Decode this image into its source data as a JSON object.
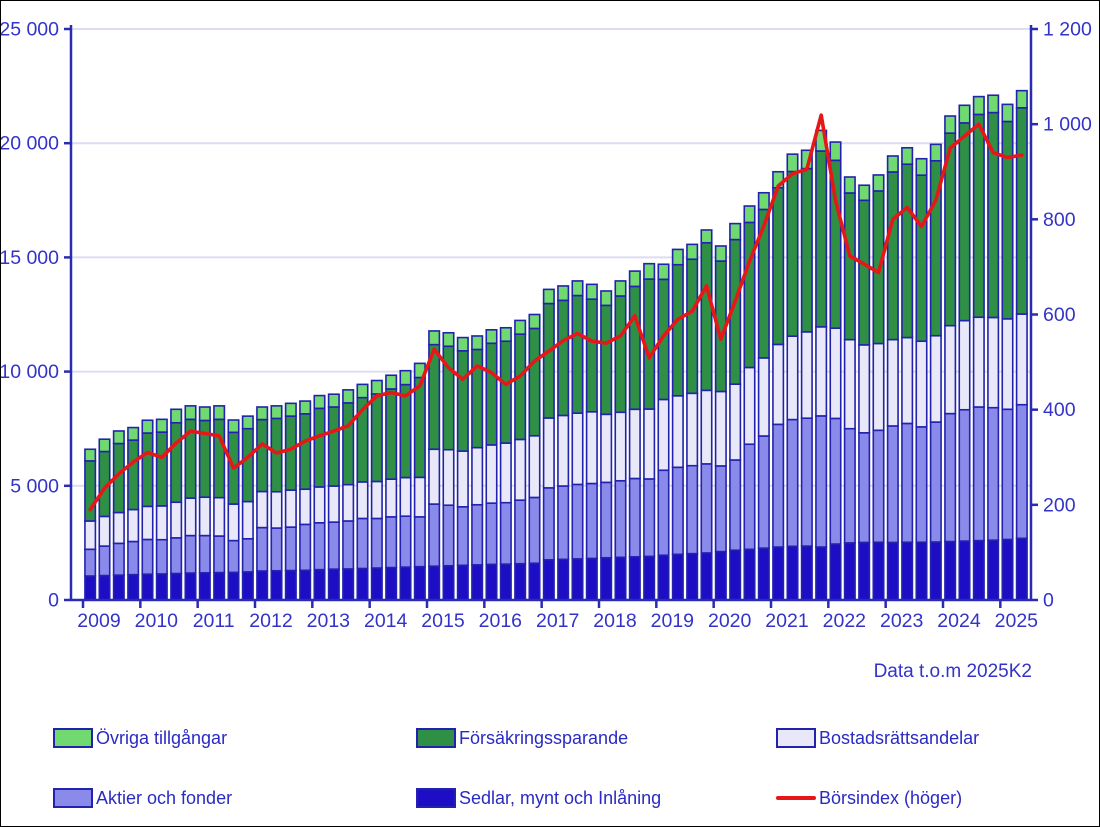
{
  "note": "Data t.o.m 2025K2",
  "colors": {
    "axis": "#2b2bb2",
    "grid": "#dcdcf4",
    "text": "#3333c9",
    "bar_outline": "#2222ad",
    "background": "#ffffff"
  },
  "legend": {
    "items": [
      {
        "label": "Övriga tillgångar",
        "color": "#70d970",
        "type": "box"
      },
      {
        "label": "Försäkringssparande",
        "color": "#2e8f45",
        "type": "box"
      },
      {
        "label": "Bostadsrättsandelar",
        "color": "#e8e8f8",
        "type": "box"
      },
      {
        "label": "Aktier och fonder",
        "color": "#8a8aea",
        "type": "box"
      },
      {
        "label": "Sedlar, mynt och Inlåning",
        "color": "#1d0ec5",
        "type": "box"
      },
      {
        "label": "Börsindex (höger)",
        "color": "#e61717",
        "type": "line"
      }
    ]
  },
  "chart_data": {
    "type": "bar",
    "subtype": "stacked-bar-with-line",
    "title": "",
    "xlabel": "",
    "ylabel": "",
    "grid": true,
    "legend_position": "bottom",
    "year_labels": [
      "2009",
      "2010",
      "2011",
      "2012",
      "2013",
      "2014",
      "2015",
      "2016",
      "2017",
      "2018",
      "2019",
      "2020",
      "2021",
      "2022",
      "2023",
      "2024",
      "2025"
    ],
    "quarters": [
      "2009K1",
      "2009K2",
      "2009K3",
      "2009K4",
      "2010K1",
      "2010K2",
      "2010K3",
      "2010K4",
      "2011K1",
      "2011K2",
      "2011K3",
      "2011K4",
      "2012K1",
      "2012K2",
      "2012K3",
      "2012K4",
      "2013K1",
      "2013K2",
      "2013K3",
      "2013K4",
      "2014K1",
      "2014K2",
      "2014K3",
      "2014K4",
      "2015K1",
      "2015K2",
      "2015K3",
      "2015K4",
      "2016K1",
      "2016K2",
      "2016K3",
      "2016K4",
      "2017K1",
      "2017K2",
      "2017K3",
      "2017K4",
      "2018K1",
      "2018K2",
      "2018K3",
      "2018K4",
      "2019K1",
      "2019K2",
      "2019K3",
      "2019K4",
      "2020K1",
      "2020K2",
      "2020K3",
      "2020K4",
      "2021K1",
      "2021K2",
      "2021K3",
      "2021K4",
      "2022K1",
      "2022K2",
      "2022K3",
      "2022K4",
      "2023K1",
      "2023K2",
      "2023K3",
      "2023K4",
      "2024K1",
      "2024K2",
      "2024K3",
      "2024K4",
      "2025K1",
      "2025K2"
    ],
    "left_axis": {
      "min": 0,
      "max": 25000,
      "tick_step": 5000,
      "tick_labels": [
        "0",
        "5 000",
        "10 000",
        "15 000",
        "20 000",
        "25 000"
      ]
    },
    "right_axis": {
      "min": 0,
      "max": 1200,
      "tick_step": 200,
      "tick_labels": [
        "0",
        "200",
        "400",
        "600",
        "800",
        "1 000",
        "1 200"
      ]
    },
    "series": [
      {
        "name": "Sedlar, mynt och Inlåning",
        "color": "#1d0ec5",
        "values": [
          1050,
          1070,
          1090,
          1110,
          1130,
          1140,
          1160,
          1180,
          1190,
          1200,
          1210,
          1230,
          1270,
          1280,
          1290,
          1300,
          1330,
          1350,
          1360,
          1380,
          1400,
          1420,
          1440,
          1460,
          1480,
          1500,
          1520,
          1540,
          1560,
          1570,
          1590,
          1610,
          1760,
          1780,
          1800,
          1820,
          1850,
          1870,
          1890,
          1910,
          1960,
          2000,
          2030,
          2060,
          2120,
          2180,
          2220,
          2270,
          2320,
          2350,
          2360,
          2320,
          2450,
          2500,
          2520,
          2530,
          2520,
          2530,
          2530,
          2540,
          2560,
          2580,
          2600,
          2620,
          2650,
          2700
        ]
      },
      {
        "name": "Aktier och fonder",
        "color": "#8a8aea",
        "values": [
          1170,
          1290,
          1390,
          1450,
          1520,
          1500,
          1560,
          1640,
          1630,
          1600,
          1390,
          1450,
          1900,
          1870,
          1900,
          2010,
          2050,
          2060,
          2100,
          2190,
          2170,
          2220,
          2230,
          2180,
          2720,
          2650,
          2560,
          2630,
          2680,
          2690,
          2780,
          2880,
          3150,
          3210,
          3260,
          3280,
          3300,
          3350,
          3430,
          3390,
          3720,
          3810,
          3850,
          3900,
          3750,
          3950,
          4600,
          4910,
          5370,
          5550,
          5600,
          5740,
          5500,
          5000,
          4800,
          4900,
          5100,
          5200,
          5050,
          5250,
          5600,
          5750,
          5850,
          5800,
          5700,
          5850
        ]
      },
      {
        "name": "Bostadsrättsandelar",
        "color": "#e8e8f8",
        "values": [
          1240,
          1300,
          1350,
          1400,
          1450,
          1480,
          1560,
          1640,
          1680,
          1680,
          1600,
          1630,
          1580,
          1590,
          1620,
          1540,
          1570,
          1580,
          1590,
          1600,
          1620,
          1650,
          1690,
          1730,
          2400,
          2430,
          2440,
          2500,
          2550,
          2610,
          2660,
          2700,
          3060,
          3090,
          3120,
          3140,
          2980,
          3000,
          3030,
          3060,
          3100,
          3130,
          3170,
          3220,
          3260,
          3320,
          3360,
          3420,
          3500,
          3650,
          3780,
          3900,
          3950,
          3900,
          3850,
          3800,
          3780,
          3760,
          3750,
          3780,
          3850,
          3900,
          3930,
          3950,
          3960,
          3970
        ]
      },
      {
        "name": "Försäkringssparande",
        "color": "#2e8f45",
        "values": [
          2630,
          2840,
          3020,
          3040,
          3210,
          3230,
          3480,
          3450,
          3360,
          3430,
          3140,
          3190,
          3150,
          3210,
          3240,
          3300,
          3440,
          3460,
          3580,
          3690,
          3830,
          3950,
          4070,
          4370,
          4580,
          4530,
          4390,
          4300,
          4450,
          4460,
          4610,
          4700,
          5010,
          5040,
          5150,
          4930,
          4770,
          5090,
          5380,
          5690,
          5260,
          5740,
          5870,
          6460,
          5710,
          6330,
          6350,
          6500,
          6860,
          7210,
          7150,
          7700,
          7350,
          6420,
          6330,
          6680,
          7340,
          7590,
          7270,
          7660,
          8430,
          8660,
          8880,
          8970,
          8640,
          9030
        ]
      },
      {
        "name": "Övriga tillgångar",
        "color": "#70d970",
        "values": [
          510,
          540,
          550,
          550,
          560,
          560,
          590,
          590,
          590,
          590,
          540,
          550,
          550,
          550,
          560,
          560,
          560,
          560,
          570,
          580,
          590,
          600,
          610,
          620,
          600,
          590,
          580,
          590,
          590,
          590,
          600,
          610,
          620,
          630,
          640,
          650,
          630,
          660,
          670,
          675,
          660,
          670,
          650,
          560,
          660,
          700,
          720,
          730,
          700,
          760,
          800,
          900,
          800,
          700,
          660,
          700,
          700,
          720,
          720,
          720,
          750,
          770,
          780,
          760,
          750,
          750
        ]
      }
    ],
    "line": {
      "name": "Börsindex (höger)",
      "color": "#e61717",
      "axis": "right",
      "values": [
        190,
        235,
        265,
        290,
        310,
        300,
        330,
        355,
        350,
        345,
        277,
        300,
        328,
        309,
        317,
        334,
        345,
        355,
        366,
        400,
        429,
        436,
        429,
        450,
        527,
        488,
        464,
        492,
        478,
        453,
        471,
        502,
        523,
        545,
        560,
        544,
        540,
        555,
        597,
        509,
        555,
        590,
        607,
        660,
        548,
        628,
        712,
        786,
        870,
        896,
        905,
        1019,
        840,
        723,
        706,
        688,
        800,
        825,
        785,
        840,
        950,
        975,
        1000,
        940,
        930,
        935
      ]
    }
  }
}
